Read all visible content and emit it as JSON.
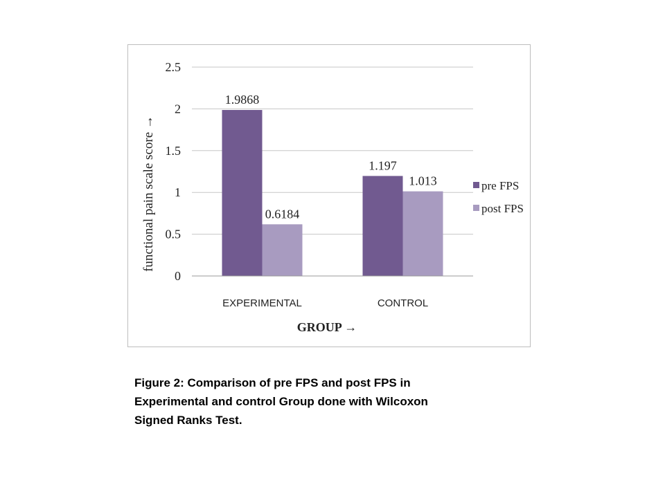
{
  "chart_data": {
    "type": "bar",
    "categories": [
      "EXPERIMENTAL",
      "CONTROL"
    ],
    "series": [
      {
        "name": "pre FPS",
        "values": [
          1.9868,
          1.197
        ],
        "color": "#715a90"
      },
      {
        "name": "post FPS",
        "values": [
          0.6184,
          1.013
        ],
        "color": "#a89bc0"
      }
    ],
    "data_labels": [
      [
        "1.9868",
        "1.197"
      ],
      [
        "0.6184",
        "1.013"
      ]
    ],
    "xlabel": "GROUP →",
    "ylabel": "functional pain scale score →",
    "ylim": [
      0,
      2.5
    ],
    "yticks": [
      0,
      0.5,
      1,
      1.5,
      2,
      2.5
    ],
    "ytick_labels": [
      "0",
      "0.5",
      "1",
      "1.5",
      "2",
      "2.5"
    ],
    "grid": true,
    "legend_position": "right"
  },
  "caption": {
    "line1": "Figure 2: Comparison of pre FPS and post FPS in",
    "line2": "Experimental and control Group done with Wilcoxon",
    "line3": "Signed Ranks Test."
  }
}
